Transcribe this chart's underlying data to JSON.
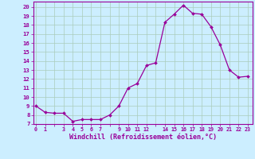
{
  "x": [
    0,
    1,
    2,
    3,
    4,
    5,
    6,
    7,
    8,
    9,
    10,
    11,
    12,
    13,
    14,
    15,
    16,
    17,
    18,
    19,
    20,
    21,
    22,
    23
  ],
  "y": [
    9.0,
    8.3,
    8.2,
    8.2,
    7.3,
    7.5,
    7.5,
    7.5,
    8.0,
    9.0,
    11.0,
    11.5,
    13.5,
    13.8,
    18.3,
    19.2,
    20.2,
    19.3,
    19.2,
    17.8,
    15.8,
    13.0,
    12.2,
    12.3
  ],
  "x_ticks_show": [
    0,
    1,
    3,
    4,
    5,
    6,
    7,
    9,
    10,
    11,
    12,
    14,
    15,
    16,
    17,
    18,
    19,
    20,
    21,
    22,
    23
  ],
  "y_ticks": [
    7,
    8,
    9,
    10,
    11,
    12,
    13,
    14,
    15,
    16,
    17,
    18,
    19,
    20
  ],
  "ylim": [
    7,
    20.6
  ],
  "xlim": [
    -0.3,
    23.5
  ],
  "line_color": "#990099",
  "marker_color": "#990099",
  "bg_color": "#cceeff",
  "grid_color": "#aaccbb",
  "xlabel": "Windchill (Refroidissement éolien,°C)",
  "xlabel_color": "#990099",
  "tick_color": "#990099",
  "axis_color": "#990099"
}
